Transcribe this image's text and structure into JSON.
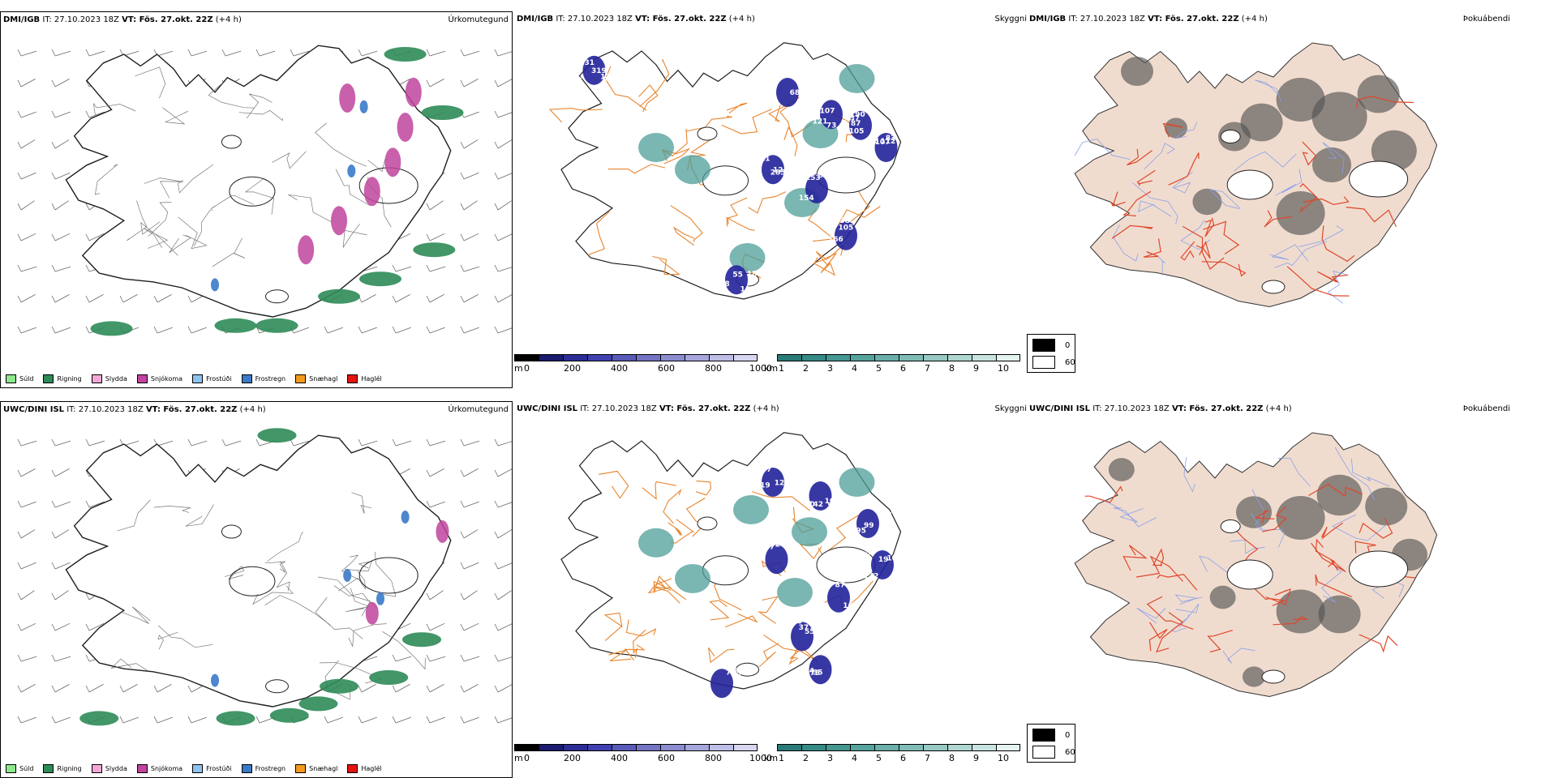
{
  "rows": [
    {
      "precip": {
        "model_label": "DMI/IGB",
        "init_label": "IT: 27.10.2023 18Z",
        "valid_label": "VT: Fös. 27.okt. 22Z",
        "lead_label": "(+4 h)",
        "panel_title": "Úrkomutegund"
      },
      "visibility": {
        "model_label": "DMI/IGB",
        "init_label": "IT: 27.10.2023 18Z",
        "valid_label": "VT: Fös. 27.okt. 22Z",
        "lead_label": "(+4 h)",
        "panel_title": "Skyggni",
        "labels": [
          "72",
          "74",
          "199",
          "87",
          "83",
          "69",
          "153",
          "105",
          "138",
          "131",
          "150",
          "121",
          "190",
          "112",
          "124",
          "137",
          "238",
          "189",
          "319",
          "80",
          "107",
          "105",
          "107",
          "111",
          "95",
          "166",
          "110",
          "133",
          "68",
          "73",
          "137",
          "73",
          "285",
          "154",
          "48",
          "55",
          "46"
        ]
      },
      "fog": {
        "model_label": "DMI/IGB",
        "init_label": "IT: 27.10.2023 18Z",
        "valid_label": "VT: Fös. 27.okt. 22Z",
        "lead_label": "(+4 h)",
        "panel_title": "Þokuábendi"
      }
    },
    {
      "precip": {
        "model_label": "UWC/DINI ISL",
        "init_label": "IT: 27.10.2023 18Z",
        "valid_label": "VT: Fös. 27.okt. 22Z",
        "lead_label": "(+4 h)",
        "panel_title": "Úrkomutegund"
      },
      "visibility": {
        "model_label": "UWC/DINI ISL",
        "init_label": "IT: 27.10.2023 18Z",
        "valid_label": "VT: Fös. 27.okt. 22Z",
        "lead_label": "(+4 h)",
        "panel_title": "Skyggni",
        "labels": [
          "77",
          "109",
          "95",
          "132",
          "92",
          "87",
          "55",
          "94",
          "98",
          "119",
          "142",
          "114",
          "52",
          "77",
          "160",
          "37",
          "75",
          "15",
          "51",
          "56",
          "99",
          "146",
          "82",
          "63",
          "100",
          "35",
          "76",
          "120",
          "90",
          "54",
          "19"
        ]
      },
      "fog": {
        "model_label": "UWC/DINI ISL",
        "init_label": "IT: 27.10.2023 18Z",
        "valid_label": "VT: Fös. 27.okt. 22Z",
        "lead_label": "(+4 h)",
        "panel_title": "Þokuábendi"
      }
    }
  ],
  "precip_legend": [
    {
      "label": "Súld",
      "color": "#8de88d"
    },
    {
      "label": "Rigning",
      "color": "#2e8b57"
    },
    {
      "label": "Slydda",
      "color": "#f4a6d7"
    },
    {
      "label": "Snjókoma",
      "color": "#c0449e"
    },
    {
      "label": "Frostúði",
      "color": "#8ec3ef"
    },
    {
      "label": "Frostregn",
      "color": "#3a7ac9"
    },
    {
      "label": "Snæhagl",
      "color": "#f39a1e"
    },
    {
      "label": "Haglél",
      "color": "#e3140f"
    }
  ],
  "height_colorbar": {
    "unit": "m",
    "ticks": [
      "0",
      "200",
      "400",
      "600",
      "800",
      "1000"
    ],
    "colors": [
      "#000000",
      "#1a1a6e",
      "#2c2c96",
      "#4040b0",
      "#5a5ab8",
      "#7474c4",
      "#8c8cd0",
      "#a6a6dc",
      "#bebee6",
      "#d6d6f0"
    ]
  },
  "visibility_colorbar": {
    "unit": "km",
    "ticks": [
      "1",
      "2",
      "3",
      "4",
      "5",
      "6",
      "7",
      "8",
      "9",
      "10"
    ],
    "colors": [
      "#2a7a78",
      "#358a86",
      "#459791",
      "#55a39d",
      "#6aafa9",
      "#80bcb6",
      "#98c9c3",
      "#b0d6d1",
      "#c9e4e0",
      "#e4f2f0"
    ]
  },
  "fog_legend": {
    "items": [
      {
        "label": "0",
        "color": "#000000"
      },
      {
        "label": "60",
        "color": "#ffffff"
      }
    ]
  },
  "map_colors": {
    "coast": "#1e1e1e",
    "roads_orange": "#e8852e",
    "roads_red": "#e0472a",
    "rivers": "#8aa0e8",
    "land_fog": "#f0dccf",
    "rain": "#2e8b57",
    "snow": "#c0449e",
    "freezing": "#3a7ac9",
    "vis_dark": "#22229a",
    "vis_teal": "#4e9e98"
  }
}
